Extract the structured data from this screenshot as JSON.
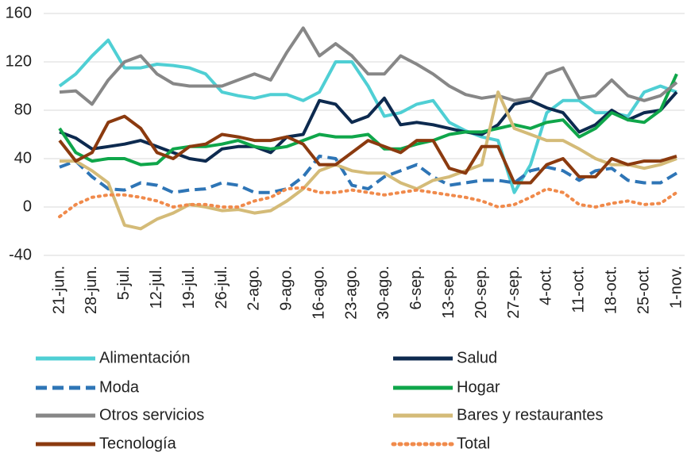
{
  "chart_data": {
    "type": "line",
    "categories": [
      "21-jun.",
      null,
      "28-jun.",
      null,
      "5-jul.",
      null,
      "12-jul.",
      null,
      "19-jul.",
      null,
      "26-jul.",
      null,
      "2-ago.",
      null,
      "9-ago.",
      null,
      "16-ago.",
      null,
      "23-ago.",
      null,
      "30-ago.",
      null,
      "6-sep.",
      null,
      "13-sep.",
      null,
      "20-sep.",
      null,
      "27-sep.",
      null,
      "4-oct.",
      null,
      "11-oct.",
      null,
      "18-oct.",
      null,
      "25-oct.",
      null,
      "1-nov."
    ],
    "ylim": [
      -40,
      160
    ],
    "yticks": [
      -40,
      0,
      40,
      80,
      120,
      160
    ],
    "grid": true,
    "series": [
      {
        "name": "Alimentación",
        "color": "#4fcfd4",
        "dash": "solid",
        "values": [
          100,
          110,
          125,
          138,
          115,
          115,
          118,
          117,
          115,
          110,
          95,
          92,
          90,
          93,
          93,
          88,
          95,
          120,
          120,
          100,
          75,
          78,
          85,
          88,
          70,
          63,
          58,
          55,
          12,
          35,
          78,
          88,
          88,
          78,
          78,
          75,
          95,
          100,
          95
        ]
      },
      {
        "name": "Salud",
        "color": "#0d2a4f",
        "dash": "solid",
        "values": [
          62,
          57,
          48,
          50,
          52,
          55,
          50,
          45,
          40,
          38,
          48,
          50,
          50,
          45,
          58,
          60,
          88,
          85,
          70,
          75,
          90,
          68,
          70,
          68,
          65,
          62,
          60,
          68,
          85,
          88,
          82,
          78,
          62,
          68,
          80,
          72,
          78,
          80,
          95
        ]
      },
      {
        "name": "Moda",
        "color": "#2e75b6",
        "dash": "dashed",
        "values": [
          33,
          38,
          25,
          15,
          14,
          20,
          18,
          12,
          14,
          15,
          20,
          18,
          12,
          12,
          15,
          25,
          42,
          40,
          18,
          15,
          25,
          30,
          35,
          25,
          18,
          20,
          22,
          22,
          20,
          30,
          33,
          30,
          22,
          30,
          32,
          22,
          20,
          20,
          28
        ]
      },
      {
        "name": "Hogar",
        "color": "#0fa64a",
        "dash": "solid",
        "values": [
          65,
          45,
          38,
          40,
          40,
          35,
          36,
          48,
          50,
          50,
          52,
          55,
          50,
          48,
          50,
          55,
          60,
          58,
          58,
          60,
          48,
          48,
          52,
          55,
          60,
          62,
          62,
          65,
          68,
          65,
          70,
          72,
          58,
          65,
          78,
          72,
          70,
          80,
          110
        ]
      },
      {
        "name": "Otros servicios",
        "color": "#878787",
        "dash": "solid",
        "values": [
          95,
          96,
          85,
          105,
          120,
          125,
          110,
          102,
          100,
          100,
          100,
          105,
          110,
          105,
          128,
          148,
          125,
          135,
          125,
          110,
          110,
          125,
          118,
          110,
          100,
          93,
          90,
          92,
          88,
          90,
          110,
          115,
          90,
          92,
          105,
          92,
          88,
          92,
          103
        ]
      },
      {
        "name": "Bares y restaurantes",
        "color": "#d4bb78",
        "dash": "solid",
        "values": [
          38,
          38,
          30,
          20,
          -15,
          -18,
          -10,
          -5,
          2,
          0,
          -3,
          -2,
          -5,
          -3,
          5,
          15,
          30,
          35,
          30,
          28,
          28,
          20,
          15,
          22,
          25,
          30,
          35,
          95,
          65,
          60,
          55,
          55,
          48,
          40,
          35,
          35,
          32,
          35,
          40
        ]
      },
      {
        "name": "Tecnología",
        "color": "#8b3a0f",
        "dash": "solid",
        "values": [
          55,
          38,
          45,
          70,
          75,
          65,
          45,
          40,
          50,
          52,
          60,
          58,
          55,
          55,
          58,
          52,
          35,
          35,
          45,
          55,
          50,
          45,
          55,
          55,
          32,
          28,
          50,
          50,
          20,
          20,
          35,
          40,
          25,
          25,
          40,
          35,
          38,
          38,
          42
        ]
      },
      {
        "name": "Total",
        "color": "#f08a4b",
        "dash": "dotted",
        "values": [
          -8,
          2,
          8,
          10,
          10,
          8,
          5,
          0,
          2,
          2,
          0,
          0,
          5,
          8,
          15,
          16,
          12,
          12,
          14,
          12,
          10,
          12,
          14,
          12,
          10,
          8,
          5,
          0,
          2,
          8,
          15,
          12,
          2,
          0,
          3,
          5,
          2,
          3,
          12
        ]
      }
    ]
  }
}
